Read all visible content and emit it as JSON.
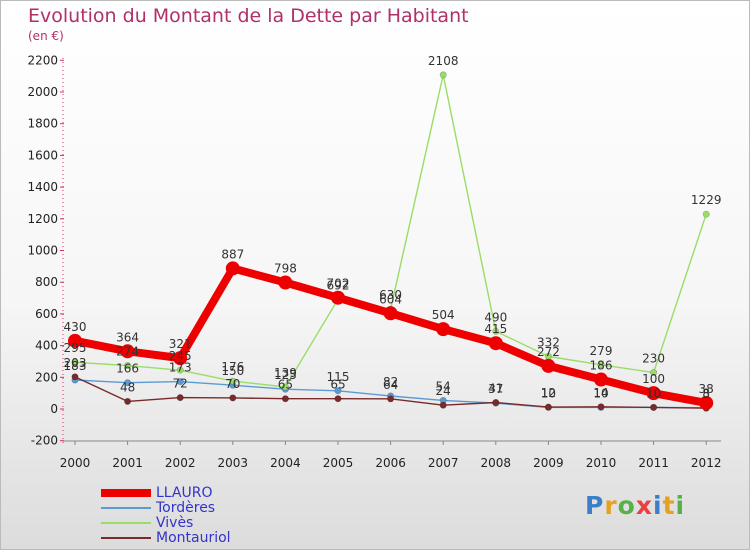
{
  "title": "Evolution du Montant de la Dette par Habitant",
  "subtitle": "(en €)",
  "logo": {
    "text": "Proxiti",
    "colors": [
      "#3a7fc8",
      "#e8a020",
      "#57b048",
      "#e84040",
      "#3a7fc8",
      "#e8a020",
      "#57b048"
    ]
  },
  "chart_data": {
    "type": "line",
    "title": "Evolution du Montant de la Dette par Habitant",
    "ylabel": "(en €)",
    "xlabel": "",
    "categories": [
      "2000",
      "2001",
      "2002",
      "2003",
      "2004",
      "2005",
      "2006",
      "2007",
      "2008",
      "2009",
      "2010",
      "2011",
      "2012"
    ],
    "ylim": [
      -200,
      2200
    ],
    "yticks": [
      -200,
      0,
      200,
      400,
      600,
      800,
      1000,
      1200,
      1400,
      1600,
      1800,
      2000,
      2200
    ],
    "grid": false,
    "legend": "bottom-left",
    "series": [
      {
        "name": "LLAURO",
        "color": "#ee0000",
        "values": [
          430,
          364,
          321,
          887,
          798,
          702,
          604,
          504,
          415,
          272,
          186,
          100,
          38
        ]
      },
      {
        "name": "Tordères",
        "color": "#5b9bd5",
        "values": [
          183,
          166,
          173,
          150,
          125,
          115,
          82,
          54,
          37,
          10,
          10,
          10,
          8
        ]
      },
      {
        "name": "Vivès",
        "color": "#99dd66",
        "values": [
          295,
          274,
          245,
          176,
          139,
          692,
          630,
          2108,
          490,
          332,
          279,
          230,
          1229
        ]
      },
      {
        "name": "Montauriol",
        "color": "#7a2a2a",
        "values": [
          203,
          48,
          72,
          70,
          65,
          65,
          64,
          24,
          41,
          12,
          14,
          10,
          5
        ]
      }
    ]
  }
}
